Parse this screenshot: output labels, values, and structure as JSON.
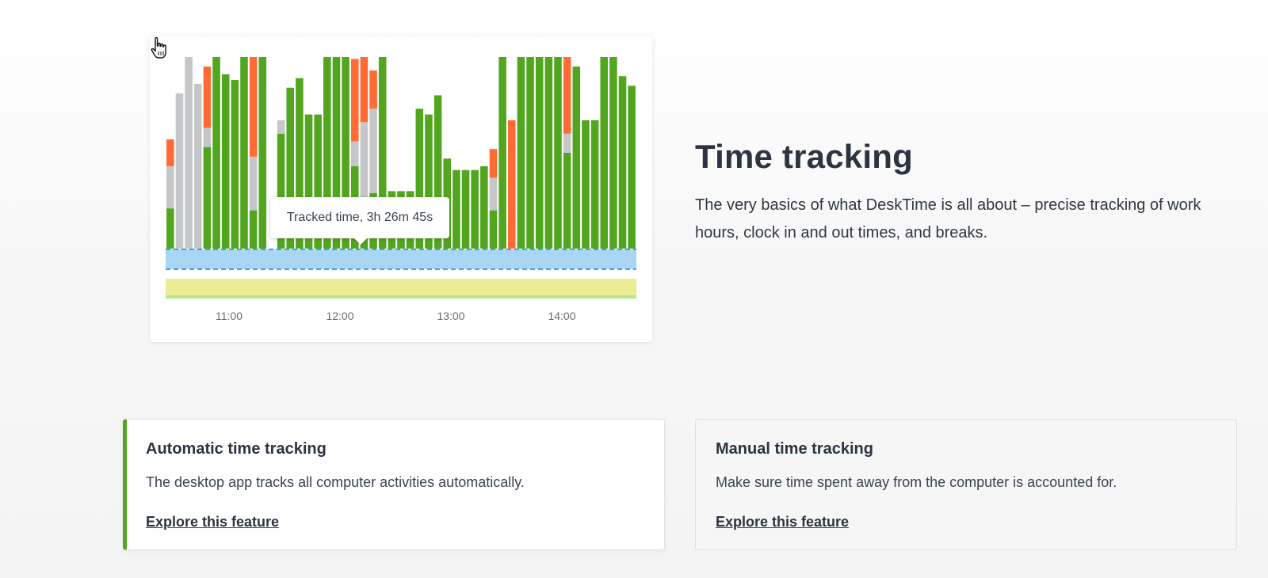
{
  "hero": {
    "title": "Time tracking",
    "description": "The very basics of what DeskTime is all about – precise tracking of work hours, clock in and out times, and breaks."
  },
  "chart": {
    "tooltip": "Tracked time, 3h 26m 45s",
    "x_labels": [
      "11:00",
      "12:00",
      "13:00",
      "14:00"
    ],
    "colors": {
      "productive": "#52a61f",
      "neutral": "#c4c6c8",
      "unproductive": "#ff6b35",
      "tracked_band": "#a9d6f5",
      "tracked_band_border": "#3fa2e6",
      "break_band": "#ecec94",
      "break_band_line": "#b9e68d"
    }
  },
  "chart_data": {
    "type": "bar",
    "stacked": true,
    "x_tick_labels": [
      "11:00",
      "12:00",
      "13:00",
      "14:00"
    ],
    "value_unit": "fraction of interval",
    "series": [
      {
        "key": "productive",
        "values": [
          0.21,
          0,
          0,
          0,
          0.53,
          1.0,
          0.91,
          0.88,
          1.0,
          0.2,
          1.0,
          0,
          0.6,
          0.84,
          0.89,
          0.7,
          0.7,
          1.0,
          1.0,
          1.0,
          0.43,
          0.27,
          0.29,
          1.0,
          0.3,
          0.3,
          0.3,
          0.73,
          0.7,
          0.8,
          0.47,
          0.41,
          0.41,
          0.41,
          0.43,
          0.2,
          1.0,
          0,
          1.0,
          1.0,
          1.0,
          1.0,
          1.0,
          0.5,
          0.95,
          0.67,
          0.67,
          1.0,
          1.0,
          0.9,
          0.85
        ]
      },
      {
        "key": "neutral",
        "values": [
          0.22,
          0.81,
          1.0,
          0.86,
          0.1,
          0,
          0,
          0,
          0,
          0.28,
          0,
          0,
          0.07,
          0,
          0,
          0,
          0,
          0,
          0,
          0,
          0.13,
          0.39,
          0.44,
          0,
          0,
          0,
          0,
          0,
          0,
          0,
          0,
          0,
          0,
          0,
          0,
          0.17,
          0,
          0,
          0,
          0,
          0,
          0,
          0,
          0.1,
          0,
          0,
          0,
          0,
          0,
          0,
          0
        ]
      },
      {
        "key": "unproductive",
        "values": [
          0.14,
          0,
          0,
          0,
          0.32,
          0,
          0,
          0,
          0,
          0.52,
          0,
          0,
          0,
          0,
          0,
          0,
          0,
          0,
          0,
          0,
          0.43,
          0.34,
          0.2,
          0,
          0,
          0,
          0,
          0,
          0,
          0,
          0,
          0,
          0,
          0,
          0,
          0.15,
          0,
          0.67,
          0,
          0,
          0,
          0,
          0,
          0.4,
          0,
          0,
          0,
          0,
          0,
          0,
          0
        ]
      }
    ]
  },
  "features": [
    {
      "title": "Automatic time tracking",
      "description": "The desktop app tracks all computer activities automatically.",
      "link": "Explore this feature",
      "active": true
    },
    {
      "title": "Manual time tracking",
      "description": "Make sure time spent away from the computer is accounted for.",
      "link": "Explore this feature",
      "active": false
    }
  ]
}
